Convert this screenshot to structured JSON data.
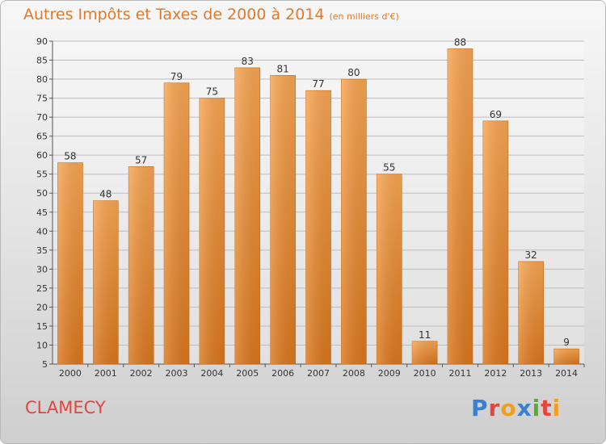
{
  "title": "Autres Impôts et Taxes de 2000 à 2014",
  "unit": "(en milliers d'€)",
  "city": "CLAMECY",
  "brand": "Proxiti",
  "colors": {
    "title": "#e07a2a",
    "city": "#e2463e",
    "bar_top": "#f6a452",
    "bar_bottom": "#d9761c"
  },
  "chart_data": {
    "type": "bar",
    "title": "Autres Impôts et Taxes de 2000 à 2014",
    "subtitle": "(en milliers d'€)",
    "categories": [
      "2000",
      "2001",
      "2002",
      "2003",
      "2004",
      "2005",
      "2006",
      "2007",
      "2008",
      "2009",
      "2010",
      "2011",
      "2012",
      "2013",
      "2014"
    ],
    "values": [
      58,
      48,
      57,
      79,
      75,
      83,
      81,
      77,
      80,
      55,
      11,
      88,
      69,
      32,
      9
    ],
    "ylim": [
      5,
      90
    ],
    "yticks": [
      5,
      10,
      15,
      20,
      25,
      30,
      35,
      40,
      45,
      50,
      55,
      60,
      65,
      70,
      75,
      80,
      85,
      90
    ],
    "grid": true,
    "legend": "none"
  }
}
